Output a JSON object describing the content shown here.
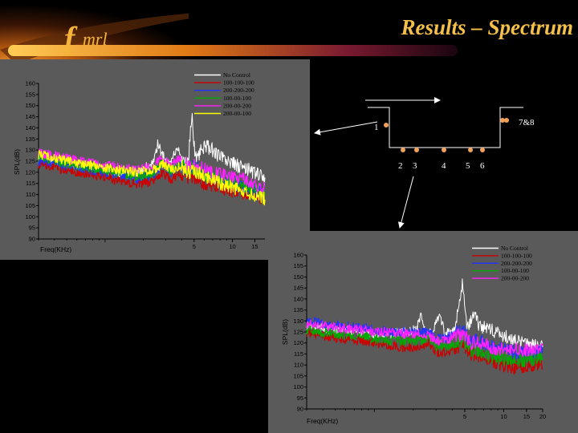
{
  "slide": {
    "title": "Results – Spectrum",
    "logo_f": "f",
    "logo_text": "mrl"
  },
  "diagram": {
    "port_labels": [
      "1",
      "2",
      "3",
      "4",
      "5",
      "6",
      "7&8"
    ]
  },
  "chart_data": [
    {
      "type": "line",
      "xlabel": "Freq(KHz)",
      "ylabel": "SPL(dB)",
      "xscale": "log",
      "xlim": [
        0.3,
        18
      ],
      "ylim": [
        90,
        160
      ],
      "yticks": [
        90,
        95,
        100,
        105,
        110,
        115,
        120,
        125,
        130,
        135,
        140,
        145,
        150,
        155,
        160
      ],
      "xtick_labels": [
        {
          "v": 5,
          "t": "5"
        },
        {
          "v": 10,
          "t": "10"
        },
        {
          "v": 15,
          "t": "15"
        }
      ],
      "grid": false,
      "legend_position": "top-right",
      "colors": [
        "#ffffff",
        "#cc0000",
        "#2233ff",
        "#00aa00",
        "#ff22ff",
        "#ffff00"
      ],
      "series": [
        {
          "name": "No Control",
          "values": [
            [
              0.3,
              126
            ],
            [
              0.5,
              124
            ],
            [
              0.8,
              122
            ],
            [
              1.0,
              121
            ],
            [
              1.3,
              120
            ],
            [
              1.8,
              119
            ],
            [
              2.4,
              125
            ],
            [
              2.6,
              133
            ],
            [
              2.8,
              128
            ],
            [
              3.2,
              124
            ],
            [
              3.7,
              131
            ],
            [
              4.0,
              125
            ],
            [
              4.5,
              124
            ],
            [
              4.8,
              147
            ],
            [
              5.1,
              126
            ],
            [
              6,
              132
            ],
            [
              7,
              130
            ],
            [
              8,
              127
            ],
            [
              10,
              124
            ],
            [
              12,
              122
            ],
            [
              15,
              120
            ],
            [
              18,
              117
            ]
          ]
        },
        {
          "name": "100-100-100",
          "values": [
            [
              0.3,
              124
            ],
            [
              0.5,
              121
            ],
            [
              0.8,
              119
            ],
            [
              1.0,
              118
            ],
            [
              1.3,
              116
            ],
            [
              1.8,
              115
            ],
            [
              2.4,
              116
            ],
            [
              2.8,
              120
            ],
            [
              3.3,
              117
            ],
            [
              3.8,
              119
            ],
            [
              4.5,
              117
            ],
            [
              5,
              118
            ],
            [
              6,
              115
            ],
            [
              8,
              113
            ],
            [
              10,
              112
            ],
            [
              12,
              111
            ],
            [
              15,
              110
            ],
            [
              18,
              108
            ]
          ]
        },
        {
          "name": "200-200-200",
          "values": [
            [
              0.3,
              125
            ],
            [
              0.5,
              123
            ],
            [
              0.8,
              121
            ],
            [
              1.0,
              120
            ],
            [
              1.3,
              119
            ],
            [
              1.8,
              117
            ],
            [
              2.4,
              119
            ],
            [
              2.8,
              124
            ],
            [
              3.3,
              120
            ],
            [
              3.8,
              124
            ],
            [
              4.5,
              121
            ],
            [
              5,
              123
            ],
            [
              6,
              120
            ],
            [
              8,
              117
            ],
            [
              10,
              115
            ],
            [
              12,
              114
            ],
            [
              15,
              112
            ],
            [
              18,
              110
            ]
          ]
        },
        {
          "name": "100-00-100",
          "values": [
            [
              0.3,
              127
            ],
            [
              0.5,
              124
            ],
            [
              0.8,
              122
            ],
            [
              1.0,
              121
            ],
            [
              1.3,
              120
            ],
            [
              1.8,
              118
            ],
            [
              2.4,
              120
            ],
            [
              2.8,
              125
            ],
            [
              3.3,
              121
            ],
            [
              3.8,
              124
            ],
            [
              4.5,
              121
            ],
            [
              5,
              122
            ],
            [
              6,
              119
            ],
            [
              8,
              117
            ],
            [
              10,
              115
            ],
            [
              12,
              114
            ],
            [
              15,
              113
            ],
            [
              18,
              111
            ]
          ]
        },
        {
          "name": "200-00-200",
          "values": [
            [
              0.3,
              129
            ],
            [
              0.5,
              126
            ],
            [
              0.8,
              124
            ],
            [
              1.0,
              123
            ],
            [
              1.3,
              122
            ],
            [
              1.8,
              121
            ],
            [
              2.4,
              123
            ],
            [
              2.8,
              127
            ],
            [
              3.3,
              123
            ],
            [
              3.8,
              126
            ],
            [
              4.5,
              123
            ],
            [
              5,
              124
            ],
            [
              6,
              121
            ],
            [
              8,
              119
            ],
            [
              10,
              118
            ],
            [
              12,
              117
            ],
            [
              15,
              115
            ],
            [
              18,
              113
            ]
          ]
        },
        {
          "name": "200-00-100",
          "values": [
            [
              0.3,
              128
            ],
            [
              0.5,
              125
            ],
            [
              0.8,
              123
            ],
            [
              1.0,
              122
            ],
            [
              1.3,
              121
            ],
            [
              1.8,
              120
            ],
            [
              2.4,
              121
            ],
            [
              2.8,
              124
            ],
            [
              3.3,
              121
            ],
            [
              3.8,
              123
            ],
            [
              4.5,
              120
            ],
            [
              5,
              121
            ],
            [
              6,
              118
            ],
            [
              8,
              115
            ],
            [
              10,
              113
            ],
            [
              12,
              111
            ],
            [
              15,
              110
            ],
            [
              18,
              108
            ]
          ]
        }
      ]
    },
    {
      "type": "line",
      "xlabel": "Freq(KHz)",
      "ylabel": "SPL(dB)",
      "xscale": "log",
      "xlim": [
        0.3,
        20
      ],
      "ylim": [
        90,
        160
      ],
      "yticks": [
        90,
        95,
        100,
        105,
        110,
        115,
        120,
        125,
        130,
        135,
        140,
        145,
        150,
        155,
        160
      ],
      "xtick_labels": [
        {
          "v": 5,
          "t": "5"
        },
        {
          "v": 10,
          "t": "10"
        },
        {
          "v": 15,
          "t": "15"
        },
        {
          "v": 20,
          "t": "20"
        }
      ],
      "grid": false,
      "legend_position": "top-right",
      "colors": [
        "#ffffff",
        "#cc0000",
        "#2233ff",
        "#00aa00",
        "#ff22ff"
      ],
      "series": [
        {
          "name": "No Control",
          "values": [
            [
              0.3,
              128
            ],
            [
              0.5,
              126
            ],
            [
              0.8,
              125
            ],
            [
              1.0,
              124
            ],
            [
              1.3,
              124
            ],
            [
              1.7,
              125
            ],
            [
              2.1,
              126
            ],
            [
              2.3,
              132
            ],
            [
              2.5,
              125
            ],
            [
              2.8,
              124
            ],
            [
              3.2,
              134
            ],
            [
              3.5,
              124
            ],
            [
              4.2,
              126
            ],
            [
              4.8,
              147
            ],
            [
              5.2,
              127
            ],
            [
              5.8,
              133
            ],
            [
              6.5,
              128
            ],
            [
              8,
              126
            ],
            [
              10,
              123
            ],
            [
              12,
              121
            ],
            [
              15,
              119
            ],
            [
              20,
              118
            ]
          ]
        },
        {
          "name": "100-100-100",
          "values": [
            [
              0.3,
              125
            ],
            [
              0.5,
              122
            ],
            [
              0.8,
              121
            ],
            [
              1.0,
              120
            ],
            [
              1.3,
              119
            ],
            [
              1.7,
              118
            ],
            [
              2.1,
              118
            ],
            [
              2.6,
              120
            ],
            [
              3,
              116
            ],
            [
              3.5,
              116
            ],
            [
              4.2,
              117
            ],
            [
              4.8,
              120
            ],
            [
              5.5,
              115
            ],
            [
              6.5,
              114
            ],
            [
              8,
              112
            ],
            [
              10,
              110
            ],
            [
              12,
              109
            ],
            [
              15,
              109
            ],
            [
              20,
              111
            ]
          ]
        },
        {
          "name": "200-200-200",
          "values": [
            [
              0.3,
              130
            ],
            [
              0.5,
              128
            ],
            [
              0.8,
              127
            ],
            [
              1.0,
              126
            ],
            [
              1.3,
              125
            ],
            [
              1.7,
              125
            ],
            [
              2.1,
              125
            ],
            [
              2.6,
              125
            ],
            [
              3,
              122
            ],
            [
              3.5,
              122
            ],
            [
              4.2,
              124
            ],
            [
              4.8,
              127
            ],
            [
              5.5,
              121
            ],
            [
              6.5,
              121
            ],
            [
              8,
              118
            ],
            [
              10,
              117
            ],
            [
              12,
              116
            ],
            [
              15,
              115
            ],
            [
              20,
              117
            ]
          ]
        },
        {
          "name": "100-00-100",
          "values": [
            [
              0.3,
              126
            ],
            [
              0.5,
              124
            ],
            [
              0.8,
              123
            ],
            [
              1.0,
              122
            ],
            [
              1.3,
              121
            ],
            [
              1.7,
              121
            ],
            [
              2.1,
              121
            ],
            [
              2.6,
              122
            ],
            [
              3,
              118
            ],
            [
              3.5,
              118
            ],
            [
              4.2,
              120
            ],
            [
              4.8,
              122
            ],
            [
              5.5,
              117
            ],
            [
              6.5,
              116
            ],
            [
              8,
              114
            ],
            [
              10,
              113
            ],
            [
              12,
              112
            ],
            [
              15,
              112
            ],
            [
              20,
              114
            ]
          ]
        },
        {
          "name": "200-00-200",
          "values": [
            [
              0.3,
              129
            ],
            [
              0.5,
              127
            ],
            [
              0.8,
              126
            ],
            [
              1.0,
              125
            ],
            [
              1.3,
              125
            ],
            [
              1.7,
              124
            ],
            [
              2.1,
              124
            ],
            [
              2.6,
              124
            ],
            [
              3,
              121
            ],
            [
              3.5,
              121
            ],
            [
              4.2,
              123
            ],
            [
              4.8,
              124
            ],
            [
              5.5,
              120
            ],
            [
              6.5,
              120
            ],
            [
              8,
              118
            ],
            [
              10,
              117
            ],
            [
              12,
              117
            ],
            [
              15,
              117
            ],
            [
              20,
              118
            ]
          ]
        }
      ]
    }
  ]
}
